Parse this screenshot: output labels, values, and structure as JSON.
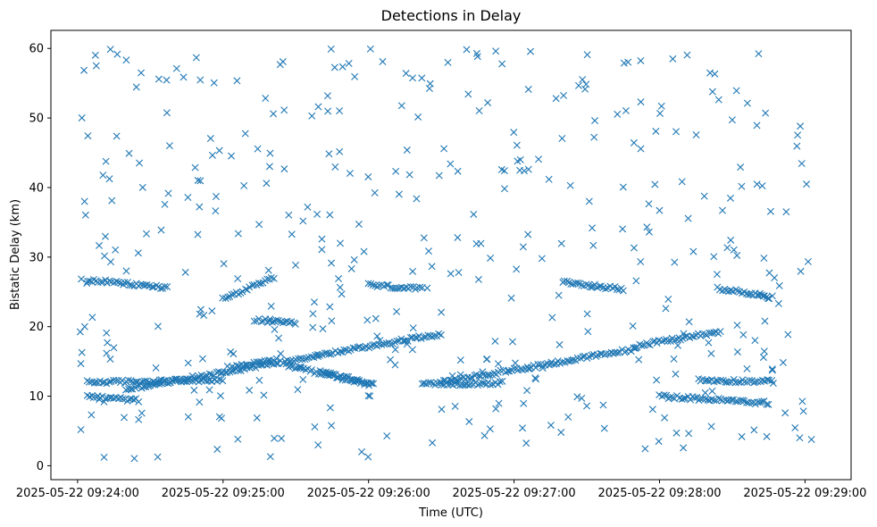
{
  "chart_data": {
    "type": "scatter",
    "title": "Detections in Delay",
    "xlabel": "Time (UTC)",
    "ylabel": "Bistatic Delay (km)",
    "marker": "x",
    "color": "#1f77b4",
    "grid": false,
    "legend": "none",
    "xlim": [
      "2025-05-22 09:23:49",
      "2025-05-22 09:29:19"
    ],
    "ylim": [
      -2,
      62.6
    ],
    "xticks": [
      "2025-05-22 09:24:00",
      "2025-05-22 09:25:00",
      "2025-05-22 09:26:00",
      "2025-05-22 09:27:00",
      "2025-05-22 09:28:00",
      "2025-05-22 09:29:00"
    ],
    "yticks": [
      0,
      10,
      20,
      30,
      40,
      50,
      60
    ],
    "tracks": [
      {
        "name": "",
        "start": "2025-05-22 09:24:04",
        "end": "2025-05-22 09:25:00",
        "y_start": 12.0,
        "y_end": 12.3
      },
      {
        "name": "",
        "start": "2025-05-22 09:24:20",
        "end": "2025-05-22 09:26:30",
        "y_start": 11.0,
        "y_end": 19.0
      },
      {
        "name": "",
        "start": "2025-05-22 09:25:02",
        "end": "2025-05-22 09:25:22",
        "y_start": 14.1,
        "y_end": 15.2
      },
      {
        "name": "",
        "start": "2025-05-22 09:24:04",
        "end": "2025-05-22 09:24:37",
        "y_start": 26.7,
        "y_end": 25.6
      },
      {
        "name": "",
        "start": "2025-05-22 09:25:00",
        "end": "2025-05-22 09:25:21",
        "y_start": 24.0,
        "y_end": 27.0
      },
      {
        "name": "",
        "start": "2025-05-22 09:25:13",
        "end": "2025-05-22 09:25:30",
        "y_start": 21.0,
        "y_end": 20.4
      },
      {
        "name": "",
        "start": "2025-05-22 09:25:25",
        "end": "2025-05-22 09:26:02",
        "y_start": 14.5,
        "y_end": 11.6
      },
      {
        "name": "",
        "start": "2025-05-22 09:25:40",
        "end": "2025-05-22 09:26:01",
        "y_start": 13.5,
        "y_end": 11.8
      },
      {
        "name": "",
        "start": "2025-05-22 09:26:00",
        "end": "2025-05-22 09:26:22",
        "y_start": 26.0,
        "y_end": 25.4
      },
      {
        "name": "",
        "start": "2025-05-22 09:26:22",
        "end": "2025-05-22 09:26:55",
        "y_start": 11.7,
        "y_end": 11.9
      },
      {
        "name": "",
        "start": "2025-05-22 09:26:30",
        "end": "2025-05-22 09:27:50",
        "y_start": 12.0,
        "y_end": 16.8
      },
      {
        "name": "",
        "start": "2025-05-22 09:27:20",
        "end": "2025-05-22 09:27:45",
        "y_start": 26.4,
        "y_end": 25.4
      },
      {
        "name": "",
        "start": "2025-05-22 09:27:50",
        "end": "2025-05-22 09:28:25",
        "y_start": 17.2,
        "y_end": 19.3
      },
      {
        "name": "",
        "start": "2025-05-22 09:28:16",
        "end": "2025-05-22 09:28:47",
        "y_start": 12.3,
        "y_end": 12.1
      },
      {
        "name": "",
        "start": "2025-05-22 09:28:24",
        "end": "2025-05-22 09:28:45",
        "y_start": 25.5,
        "y_end": 24.3
      },
      {
        "name": "",
        "start": "2025-05-22 09:24:04",
        "end": "2025-05-22 09:24:25",
        "y_start": 10.0,
        "y_end": 9.4
      },
      {
        "name": "",
        "start": "2025-05-22 09:28:00",
        "end": "2025-05-22 09:28:45",
        "y_start": 10.0,
        "y_end": 9.0
      }
    ],
    "background_points": 420
  }
}
